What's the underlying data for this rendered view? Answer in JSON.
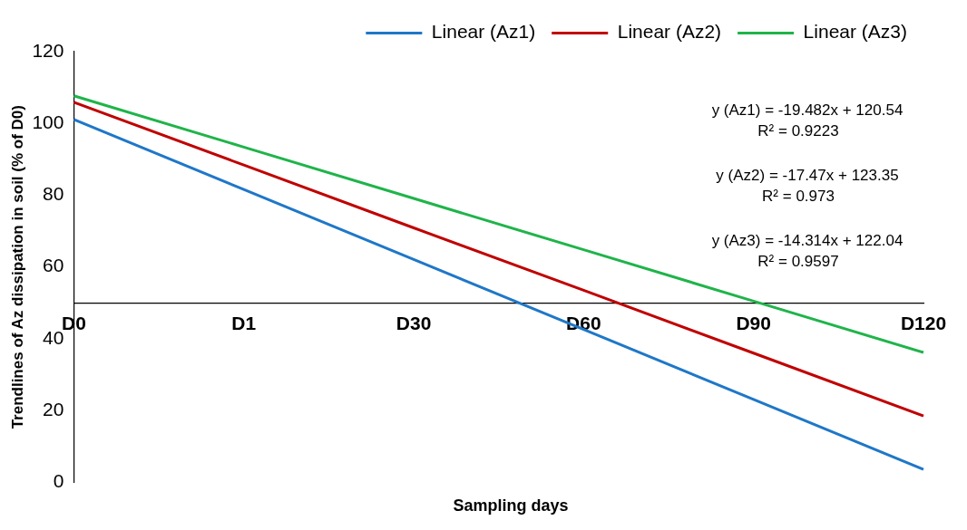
{
  "chart_data": {
    "type": "line",
    "xlabel": "Sampling days",
    "ylabel": "Trendlines of Az dissipation in soil (% of D0)",
    "categories": [
      "D0",
      "D1",
      "D30",
      "D60",
      "D90",
      "D120"
    ],
    "series": [
      {
        "name": "Linear (Az1)",
        "color": "#1f77c8",
        "values": [
          101.1,
          81.6,
          62.1,
          42.6,
          23.1,
          3.6
        ]
      },
      {
        "name": "Linear (Az2)",
        "color": "#c00000",
        "values": [
          105.9,
          88.4,
          70.9,
          53.5,
          36.0,
          18.5
        ]
      },
      {
        "name": "Linear (Az3)",
        "color": "#1fb44a",
        "values": [
          107.7,
          93.4,
          79.1,
          64.8,
          50.5,
          36.2
        ]
      }
    ],
    "ylim": [
      0,
      120
    ],
    "yticks": [
      0,
      20,
      40,
      60,
      80,
      100,
      120
    ],
    "legend": "top right",
    "marker": "none",
    "annotations": [
      "y (Az1) = -19.482x + 120.54",
      "R² = 0.9223",
      "y (Az2) = -17.47x + 123.35",
      "R² = 0.973",
      "y (Az3) = -14.314x + 122.04",
      "R² = 0.9597"
    ]
  }
}
